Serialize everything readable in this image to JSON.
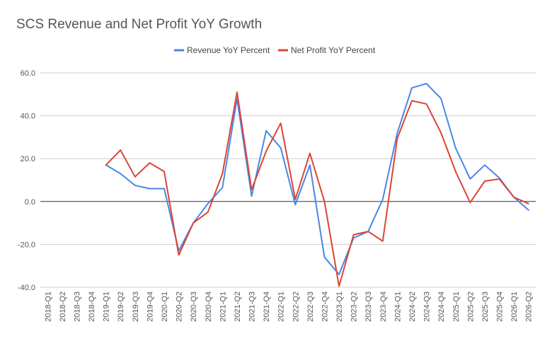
{
  "chart_data": {
    "type": "line",
    "title": "SCS Revenue and Net Profit YoY Growth",
    "xlabel": "",
    "ylabel": "",
    "ylim": [
      -40,
      60
    ],
    "yticks": [
      "60.0",
      "40.0",
      "20.0",
      "0.0",
      "-20.0",
      "-40.0"
    ],
    "ytick_values": [
      60,
      40,
      20,
      0,
      -20,
      -40
    ],
    "legend_position": "top-center",
    "grid": "horizontal",
    "categories": [
      "2018-Q1",
      "2018-Q2",
      "2018-Q3",
      "2018-Q4",
      "2019-Q1",
      "2019-Q2",
      "2019-Q3",
      "2019-Q4",
      "2020-Q1",
      "2020-Q2",
      "2020-Q3",
      "2020-Q4",
      "2021-Q1",
      "2021-Q2",
      "2021-Q3",
      "2021-Q4",
      "2022-Q1",
      "2022-Q2",
      "2022-Q3",
      "2022-Q4",
      "2023-Q1",
      "2023-Q2",
      "2023-Q3",
      "2023-Q4",
      "2024-Q1",
      "2024-Q2",
      "2024-Q3",
      "2024-Q4",
      "2025-Q1",
      "2025-Q2",
      "2025-Q3",
      "2025-Q4",
      "2026-Q1",
      "2026-Q2"
    ],
    "series": [
      {
        "name": "Revenue YoY Percent",
        "color": "#4a86e8",
        "values": [
          null,
          null,
          null,
          null,
          17,
          13,
          7.5,
          6,
          6,
          -23,
          -10,
          -1,
          6.5,
          48,
          2.5,
          33,
          25,
          -1.5,
          17,
          -26,
          -34,
          -17,
          -14,
          1,
          32,
          53,
          55,
          48,
          25,
          10.5,
          17,
          11,
          2,
          -4
        ]
      },
      {
        "name": "Net Profit YoY Percent",
        "color": "#db4437",
        "values": [
          null,
          null,
          null,
          null,
          17,
          24,
          11.5,
          18,
          14,
          -25,
          -10,
          -5,
          13,
          51,
          5.5,
          23.5,
          36.5,
          1,
          22.5,
          0,
          -39.5,
          -15.5,
          -14,
          -18.5,
          29.5,
          47,
          45.5,
          32,
          14,
          -0.5,
          9.5,
          10.5,
          2,
          -1
        ]
      }
    ]
  }
}
